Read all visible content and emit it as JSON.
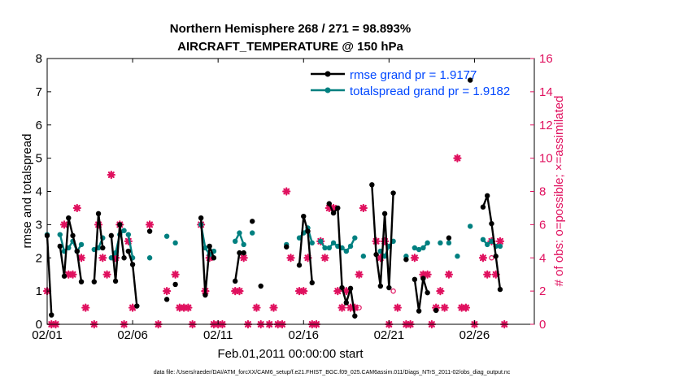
{
  "chart_data": {
    "type": "line",
    "title_line1": "Northern Hemisphere 268 / 271 = 98.893%",
    "title_line2": "AIRCRAFT_TEMPERATURE @ 150 hPa",
    "xlabel": "Feb.01,2011 00:00:00 start",
    "ylabel_left": "rmse and totalspread",
    "ylabel_right": "# of obs: o=possible; ×=assimilated",
    "footer": "data file: /Users/raeder/DAI/ATM_forcXX/CAM6_setup/f.e21.FHIST_BGC.f09_025.CAM6assim.011/Diags_NTrS_2011-02/obs_diag_output.nc",
    "xlim": [
      1,
      29.5
    ],
    "ylim_left": [
      0,
      8
    ],
    "ylim_right": [
      0,
      16
    ],
    "xticks": [
      1,
      6,
      11,
      16,
      21,
      26
    ],
    "xtick_labels": [
      "02/01",
      "02/06",
      "02/11",
      "02/16",
      "02/21",
      "02/26"
    ],
    "yticks_left": [
      0,
      1,
      2,
      3,
      4,
      5,
      6,
      7,
      8
    ],
    "yticks_right": [
      0,
      2,
      4,
      6,
      8,
      10,
      12,
      14,
      16
    ],
    "colors": {
      "rmse": "#000000",
      "spread": "#008080",
      "obs": "#e0115f",
      "legend_text": "#0047ff"
    },
    "series": [
      {
        "name": "rmse grand pr = 1.9177",
        "axis": "left",
        "segments": [
          [
            [
              1.0,
              2.67
            ],
            [
              1.25,
              0.28
            ]
          ],
          [
            [
              1.75,
              2.35
            ],
            [
              2.0,
              1.45
            ],
            [
              2.25,
              3.2
            ],
            [
              2.5,
              2.67
            ],
            [
              2.75,
              2.2
            ],
            [
              3.0,
              1.28
            ]
          ],
          [
            [
              3.75,
              1.28
            ],
            [
              4.0,
              3.33
            ],
            [
              4.25,
              2.3
            ]
          ],
          [
            [
              4.75,
              2.67
            ],
            [
              5.0,
              1.3
            ],
            [
              5.25,
              3.0
            ],
            [
              5.5,
              2.0
            ]
          ],
          [
            [
              5.75,
              2.2
            ],
            [
              6.0,
              1.8
            ],
            [
              6.25,
              0.55
            ]
          ],
          [
            [
              7.0,
              2.8
            ]
          ],
          [
            [
              8.0,
              0.75
            ]
          ],
          [
            [
              8.5,
              1.2
            ]
          ],
          [
            [
              10.0,
              3.2
            ],
            [
              10.25,
              0.88
            ],
            [
              10.5,
              2.35
            ],
            [
              10.75,
              2.0
            ]
          ],
          [
            [
              12.0,
              1.3
            ],
            [
              12.25,
              2.15
            ],
            [
              12.5,
              2.15
            ]
          ],
          [
            [
              13.0,
              3.1
            ]
          ],
          [
            [
              13.5,
              1.15
            ]
          ],
          [
            [
              15.0,
              2.33
            ]
          ],
          [
            [
              15.75,
              1.78
            ],
            [
              16.0,
              3.25
            ],
            [
              16.25,
              2.8
            ],
            [
              16.5,
              1.25
            ]
          ],
          [
            [
              17.5,
              3.63
            ],
            [
              17.75,
              3.35
            ],
            [
              18.0,
              3.5
            ],
            [
              18.25,
              1.1
            ],
            [
              18.5,
              0.65
            ],
            [
              18.75,
              1.08
            ],
            [
              19.0,
              0.25
            ]
          ],
          [
            [
              20.0,
              4.2
            ],
            [
              20.25,
              2.1
            ],
            [
              20.5,
              1.15
            ],
            [
              20.75,
              3.33
            ],
            [
              21.0,
              1.1
            ],
            [
              21.25,
              3.95
            ]
          ],
          [
            [
              22.0,
              1.95
            ]
          ],
          [
            [
              22.5,
              1.35
            ],
            [
              22.75,
              0.4
            ],
            [
              23.0,
              1.38
            ],
            [
              23.25,
              0.95
            ]
          ],
          [
            [
              23.75,
              0.42
            ]
          ],
          [
            [
              24.5,
              2.6
            ]
          ],
          [
            [
              25.75,
              7.35
            ]
          ],
          [
            [
              26.5,
              3.53
            ],
            [
              26.75,
              3.87
            ],
            [
              27.0,
              3.03
            ],
            [
              27.25,
              2.05
            ],
            [
              27.5,
              1.05
            ]
          ]
        ]
      },
      {
        "name": "totalspread grand pr = 1.9182",
        "axis": "left",
        "segments": [
          [
            [
              1.0,
              2.7
            ]
          ],
          [
            [
              1.75,
              2.7
            ],
            [
              2.0,
              2.2
            ],
            [
              2.25,
              2.3
            ],
            [
              2.5,
              2.5
            ],
            [
              2.75,
              2.2
            ],
            [
              3.0,
              2.4
            ]
          ],
          [
            [
              3.75,
              2.25
            ],
            [
              4.0,
              2.3
            ],
            [
              4.25,
              2.6
            ]
          ],
          [
            [
              4.75,
              2.0
            ],
            [
              5.0,
              2.15
            ],
            [
              5.25,
              2.7
            ],
            [
              5.5,
              2.82
            ]
          ],
          [
            [
              5.75,
              2.7
            ],
            [
              6.0,
              2.0
            ]
          ],
          [
            [
              7.0,
              2.0
            ]
          ],
          [
            [
              8.0,
              2.65
            ]
          ],
          [
            [
              8.5,
              2.45
            ]
          ],
          [
            [
              10.0,
              3.0
            ],
            [
              10.25,
              2.3
            ],
            [
              10.5,
              2.1
            ],
            [
              10.75,
              2.2
            ]
          ],
          [
            [
              12.0,
              2.5
            ],
            [
              12.25,
              2.75
            ],
            [
              12.5,
              2.4
            ]
          ],
          [
            [
              13.0,
              2.75
            ]
          ],
          [
            [
              15.0,
              2.4
            ]
          ],
          [
            [
              15.75,
              2.6
            ],
            [
              16.0,
              2.75
            ],
            [
              16.25,
              2.9
            ],
            [
              16.5,
              2.45
            ]
          ],
          [
            [
              17.0,
              2.5
            ],
            [
              17.25,
              2.3
            ],
            [
              17.5,
              2.3
            ],
            [
              17.75,
              2.45
            ],
            [
              18.0,
              2.35
            ],
            [
              18.25,
              2.3
            ],
            [
              18.5,
              2.2
            ],
            [
              18.75,
              2.35
            ],
            [
              19.0,
              2.6
            ]
          ],
          [
            [
              19.5,
              2.05
            ]
          ],
          [
            [
              20.5,
              2.2
            ],
            [
              20.75,
              2.05
            ],
            [
              21.0,
              2.35
            ],
            [
              21.25,
              2.5
            ]
          ],
          [
            [
              22.0,
              2.05
            ]
          ],
          [
            [
              22.5,
              2.3
            ],
            [
              22.75,
              2.25
            ],
            [
              23.0,
              2.3
            ],
            [
              23.25,
              2.45
            ]
          ],
          [
            [
              24.0,
              2.45
            ]
          ],
          [
            [
              24.5,
              2.45
            ]
          ],
          [
            [
              25.0,
              2.05
            ]
          ],
          [
            [
              25.75,
              2.95
            ]
          ],
          [
            [
              26.5,
              2.55
            ],
            [
              26.75,
              2.4
            ],
            [
              27.0,
              2.5
            ],
            [
              27.25,
              2.35
            ],
            [
              27.5,
              2.35
            ]
          ]
        ]
      }
    ],
    "obs_assimilated": [
      [
        1.0,
        2
      ],
      [
        1.25,
        0
      ],
      [
        1.5,
        0
      ],
      [
        2.0,
        6
      ],
      [
        2.25,
        3
      ],
      [
        2.5,
        3
      ],
      [
        2.75,
        7
      ],
      [
        3.0,
        4
      ],
      [
        3.25,
        1
      ],
      [
        3.75,
        0
      ],
      [
        4.0,
        6
      ],
      [
        4.25,
        4
      ],
      [
        4.5,
        3
      ],
      [
        4.75,
        9
      ],
      [
        5.0,
        4
      ],
      [
        5.25,
        6
      ],
      [
        5.5,
        0
      ],
      [
        5.75,
        5
      ],
      [
        6.0,
        1
      ],
      [
        7.0,
        6
      ],
      [
        7.5,
        0
      ],
      [
        8.0,
        2
      ],
      [
        8.5,
        3
      ],
      [
        8.75,
        1
      ],
      [
        9.0,
        1
      ],
      [
        9.25,
        1
      ],
      [
        9.5,
        0
      ],
      [
        10.0,
        6
      ],
      [
        10.25,
        2
      ],
      [
        10.5,
        4
      ],
      [
        10.75,
        0
      ],
      [
        11.0,
        0
      ],
      [
        11.25,
        0
      ],
      [
        12.0,
        2
      ],
      [
        12.25,
        2
      ],
      [
        12.5,
        4
      ],
      [
        12.75,
        0
      ],
      [
        13.25,
        1
      ],
      [
        13.5,
        0
      ],
      [
        14.0,
        0
      ],
      [
        14.25,
        1
      ],
      [
        14.5,
        0
      ],
      [
        14.75,
        0
      ],
      [
        15.0,
        8
      ],
      [
        15.25,
        4
      ],
      [
        15.75,
        2
      ],
      [
        16.0,
        2
      ],
      [
        16.25,
        4
      ],
      [
        16.5,
        0
      ],
      [
        16.75,
        0
      ],
      [
        17.0,
        5
      ],
      [
        17.25,
        4
      ],
      [
        17.5,
        7
      ],
      [
        17.75,
        7
      ],
      [
        18.0,
        2
      ],
      [
        18.25,
        1
      ],
      [
        18.5,
        2
      ],
      [
        18.75,
        1
      ],
      [
        19.0,
        1
      ],
      [
        19.25,
        3
      ],
      [
        19.5,
        7
      ],
      [
        20.25,
        5
      ],
      [
        20.5,
        4
      ],
      [
        20.75,
        5
      ],
      [
        21.0,
        0
      ],
      [
        21.5,
        1
      ],
      [
        22.0,
        0
      ],
      [
        22.25,
        0
      ],
      [
        22.5,
        4
      ],
      [
        23.0,
        3
      ],
      [
        23.25,
        3
      ],
      [
        23.5,
        0
      ],
      [
        23.75,
        1
      ],
      [
        24.0,
        2
      ],
      [
        24.25,
        1
      ],
      [
        24.5,
        3
      ],
      [
        25.0,
        10
      ],
      [
        25.25,
        1
      ],
      [
        25.5,
        1
      ],
      [
        26.0,
        0
      ],
      [
        26.5,
        4
      ],
      [
        26.75,
        3
      ],
      [
        27.0,
        5
      ],
      [
        27.25,
        3
      ],
      [
        27.5,
        5
      ],
      [
        27.75,
        0
      ]
    ],
    "obs_possible": [
      [
        19.25,
        1
      ],
      [
        21.25,
        2
      ],
      [
        27.0,
        4
      ]
    ],
    "legend": [
      "rmse grand pr = 1.9177",
      "totalspread grand pr = 1.9182"
    ]
  }
}
